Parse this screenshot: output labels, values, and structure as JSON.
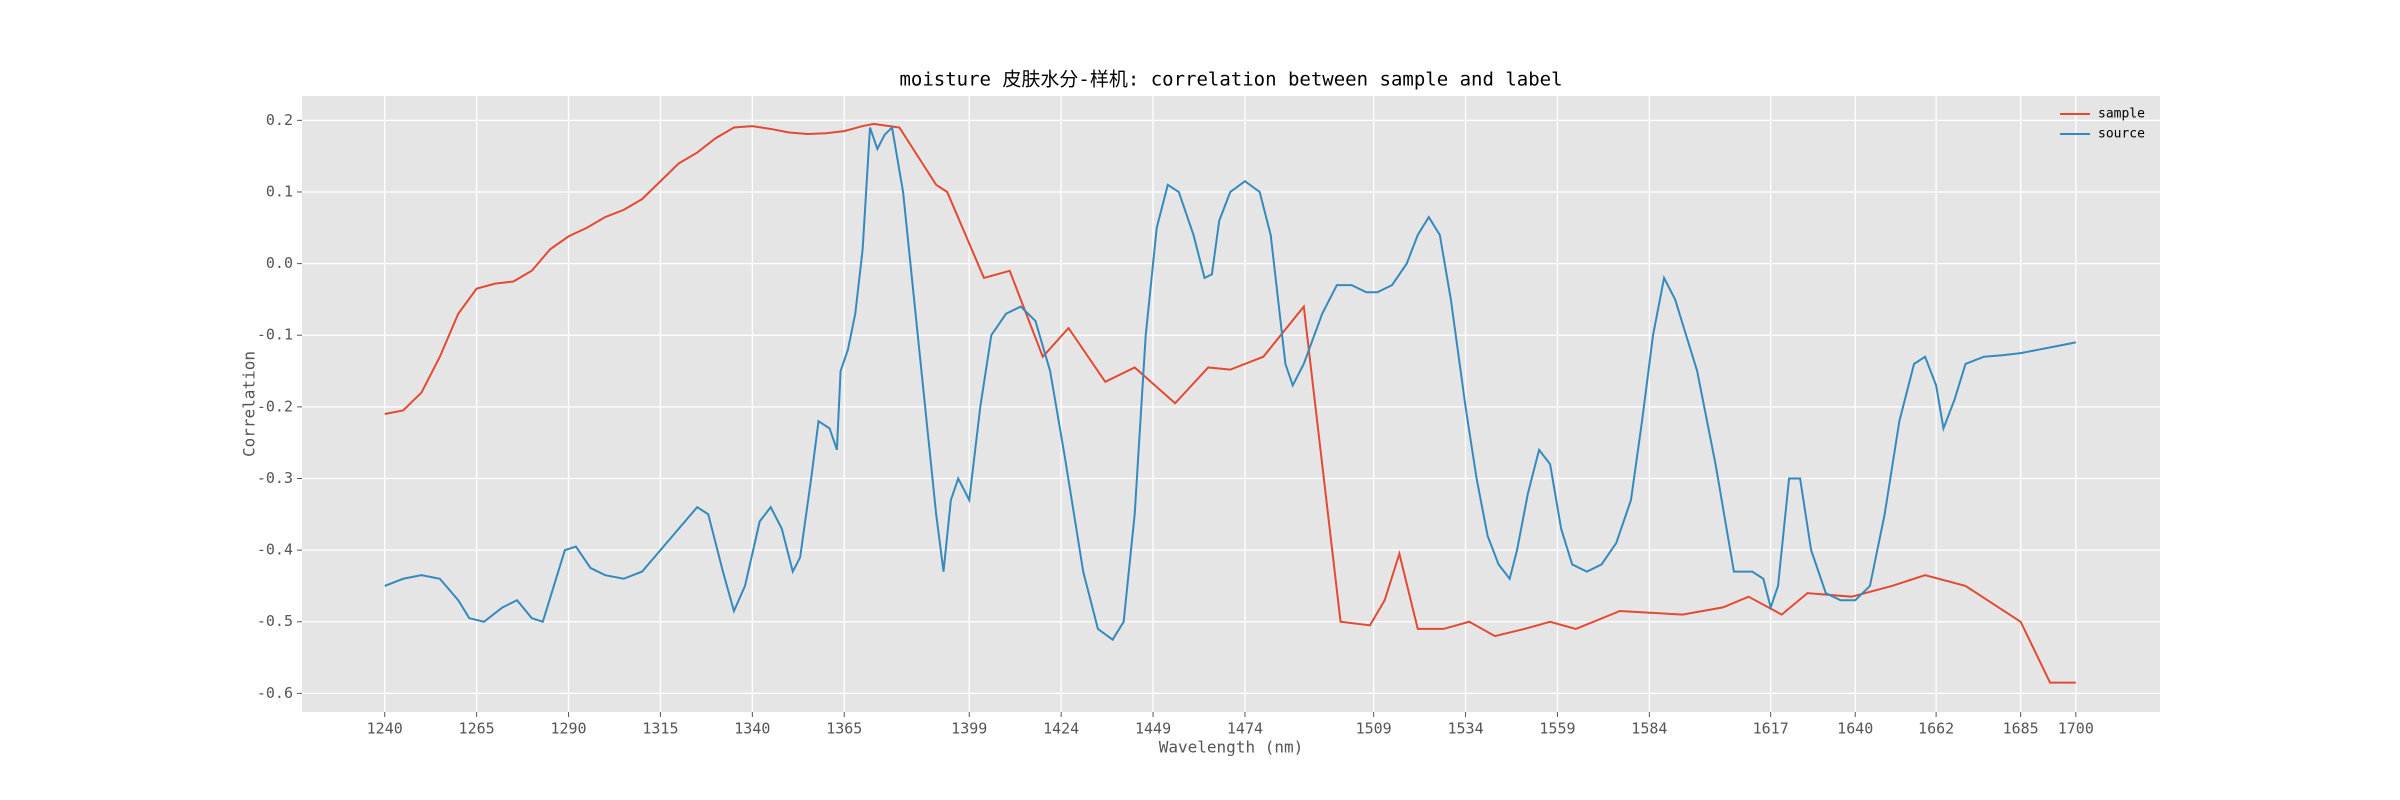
{
  "chart_data": {
    "type": "line",
    "title": "moisture 皮肤水分-样机: correlation between sample and label",
    "xlabel": "Wavelength (nm)",
    "ylabel": "Correlation",
    "xlim": [
      1217.5,
      1722.9
    ],
    "ylim": [
      -0.626,
      0.234
    ],
    "xticks": [
      1240,
      1265,
      1290,
      1315,
      1340,
      1365,
      1399,
      1424,
      1449,
      1474,
      1509,
      1534,
      1559,
      1584,
      1617,
      1640,
      1662,
      1685,
      1700
    ],
    "yticks": [
      -0.6,
      -0.5,
      -0.4,
      -0.3,
      -0.2,
      -0.1,
      {
        "value": 0,
        "label": "0.0"
      },
      0.1,
      0.2
    ],
    "grid": true,
    "legend": "upper right",
    "series": [
      {
        "name": "sample",
        "color": "#E24A33",
        "x": [
          1240,
          1245,
          1250,
          1255,
          1260,
          1265,
          1270,
          1275,
          1280,
          1285,
          1290,
          1295,
          1300,
          1305,
          1310,
          1315,
          1320,
          1325,
          1330,
          1335,
          1340,
          1345,
          1350,
          1355,
          1360,
          1365,
          1370,
          1373,
          1380,
          1390,
          1393,
          1403,
          1410,
          1419,
          1426,
          1436,
          1444,
          1455,
          1464,
          1470,
          1479,
          1490,
          1500,
          1508,
          1512,
          1516,
          1521,
          1528,
          1535,
          1542,
          1550,
          1557,
          1564,
          1576,
          1593,
          1604,
          1611,
          1620,
          1627,
          1639,
          1650,
          1659,
          1670,
          1685,
          1693,
          1700
        ],
        "values": [
          -0.21,
          -0.205,
          -0.18,
          -0.13,
          -0.07,
          -0.035,
          -0.028,
          -0.025,
          -0.01,
          0.02,
          0.038,
          0.05,
          0.065,
          0.075,
          0.09,
          0.115,
          0.14,
          0.155,
          0.175,
          0.19,
          0.192,
          0.188,
          0.183,
          0.181,
          0.182,
          0.185,
          0.192,
          0.195,
          0.19,
          0.11,
          0.1,
          -0.02,
          -0.01,
          -0.13,
          -0.09,
          -0.165,
          -0.145,
          -0.195,
          -0.145,
          -0.148,
          -0.13,
          -0.06,
          -0.5,
          -0.505,
          -0.47,
          -0.405,
          -0.51,
          -0.51,
          -0.5,
          -0.52,
          -0.51,
          -0.5,
          -0.51,
          -0.485,
          -0.49,
          -0.48,
          -0.465,
          -0.49,
          -0.46,
          -0.465,
          -0.45,
          -0.435,
          -0.45,
          -0.5,
          -0.585,
          -0.585
        ]
      },
      {
        "name": "source",
        "color": "#348ABD",
        "x": [
          1240,
          1245,
          1250,
          1255,
          1260,
          1263,
          1267,
          1272,
          1276,
          1280,
          1283,
          1286,
          1289,
          1292,
          1296,
          1300,
          1305,
          1310,
          1315,
          1320,
          1325,
          1328,
          1332,
          1335,
          1338,
          1342,
          1345,
          1348,
          1351,
          1353,
          1356,
          1358,
          1361,
          1363,
          1364,
          1366,
          1368,
          1370,
          1372,
          1374,
          1376,
          1378,
          1381,
          1385,
          1390,
          1392,
          1394,
          1396,
          1399,
          1402,
          1405,
          1409,
          1413,
          1417,
          1421,
          1425,
          1430,
          1434,
          1438,
          1441,
          1444,
          1447,
          1450,
          1453,
          1456,
          1460,
          1463,
          1465,
          1467,
          1470,
          1474,
          1478,
          1481,
          1483,
          1485,
          1487,
          1490,
          1495,
          1499,
          1503,
          1507,
          1510,
          1514,
          1518,
          1521,
          1524,
          1527,
          1530,
          1534,
          1537,
          1540,
          1543,
          1546,
          1548,
          1551,
          1554,
          1557,
          1560,
          1563,
          1567,
          1571,
          1575,
          1579,
          1582,
          1585,
          1588,
          1591,
          1594,
          1597,
          1602,
          1607,
          1612,
          1615,
          1617,
          1619,
          1622,
          1625,
          1628,
          1632,
          1636,
          1640,
          1644,
          1648,
          1652,
          1656,
          1659,
          1662,
          1664,
          1667,
          1670,
          1675,
          1680,
          1685,
          1690,
          1695,
          1700
        ],
        "values": [
          -0.45,
          -0.44,
          -0.435,
          -0.44,
          -0.47,
          -0.495,
          -0.5,
          -0.48,
          -0.47,
          -0.495,
          -0.5,
          -0.45,
          -0.4,
          -0.395,
          -0.425,
          -0.435,
          -0.44,
          -0.43,
          -0.4,
          -0.37,
          -0.34,
          -0.35,
          -0.43,
          -0.485,
          -0.45,
          -0.36,
          -0.34,
          -0.37,
          -0.43,
          -0.41,
          -0.3,
          -0.22,
          -0.23,
          -0.26,
          -0.15,
          -0.12,
          -0.07,
          0.02,
          0.19,
          0.16,
          0.18,
          0.19,
          0.1,
          -0.1,
          -0.35,
          -0.43,
          -0.33,
          -0.3,
          -0.33,
          -0.2,
          -0.1,
          -0.07,
          -0.06,
          -0.08,
          -0.15,
          -0.27,
          -0.43,
          -0.51,
          -0.525,
          -0.5,
          -0.35,
          -0.1,
          0.05,
          0.11,
          0.1,
          0.04,
          -0.02,
          -0.015,
          0.06,
          0.1,
          0.115,
          0.1,
          0.04,
          -0.05,
          -0.14,
          -0.17,
          -0.14,
          -0.07,
          -0.03,
          -0.03,
          -0.04,
          -0.04,
          -0.03,
          0.0,
          0.04,
          0.065,
          0.04,
          -0.05,
          -0.2,
          -0.3,
          -0.38,
          -0.42,
          -0.44,
          -0.4,
          -0.32,
          -0.26,
          -0.28,
          -0.37,
          -0.42,
          -0.43,
          -0.42,
          -0.39,
          -0.33,
          -0.22,
          -0.1,
          -0.02,
          -0.05,
          -0.1,
          -0.15,
          -0.28,
          -0.43,
          -0.43,
          -0.44,
          -0.48,
          -0.45,
          -0.3,
          -0.3,
          -0.4,
          -0.46,
          -0.47,
          -0.47,
          -0.45,
          -0.35,
          -0.22,
          -0.14,
          -0.13,
          -0.17,
          -0.23,
          -0.19,
          -0.14,
          -0.13,
          -0.128,
          -0.125,
          -0.12,
          -0.115,
          -0.11
        ]
      }
    ]
  }
}
